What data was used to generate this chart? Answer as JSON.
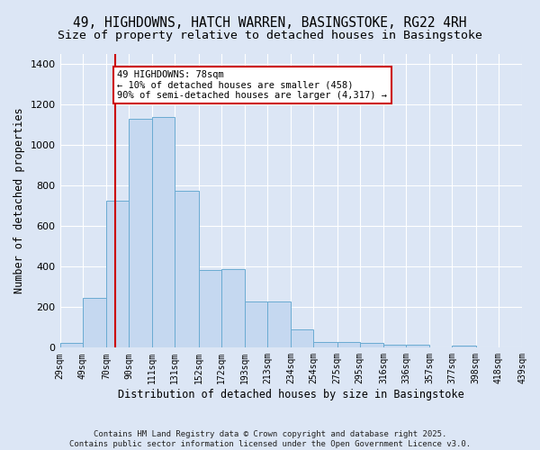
{
  "title_line1": "49, HIGHDOWNS, HATCH WARREN, BASINGSTOKE, RG22 4RH",
  "title_line2": "Size of property relative to detached houses in Basingstoke",
  "xlabel": "Distribution of detached houses by size in Basingstoke",
  "ylabel": "Number of detached properties",
  "bin_edges": [
    29,
    49,
    70,
    90,
    111,
    131,
    152,
    172,
    193,
    213,
    234,
    254,
    275,
    295,
    316,
    336,
    357,
    377,
    398,
    418,
    439
  ],
  "bar_heights": [
    25,
    245,
    725,
    1130,
    1140,
    775,
    385,
    390,
    230,
    230,
    90,
    30,
    30,
    25,
    15,
    15,
    0,
    10,
    0,
    0
  ],
  "bar_color": "#c5d8f0",
  "bar_edge_color": "#6aabd2",
  "property_line_x": 78,
  "property_line_color": "#cc0000",
  "annotation_text": "49 HIGHDOWNS: 78sqm\n← 10% of detached houses are smaller (458)\n90% of semi-detached houses are larger (4,317) →",
  "annotation_box_color": "#ffffff",
  "annotation_box_edge_color": "#cc0000",
  "background_color": "#dce6f5",
  "plot_bg_color": "#dce6f5",
  "grid_color": "#ffffff",
  "ylim": [
    0,
    1450
  ],
  "yticks": [
    0,
    200,
    400,
    600,
    800,
    1000,
    1200,
    1400
  ],
  "copyright_text": "Contains HM Land Registry data © Crown copyright and database right 2025.\nContains public sector information licensed under the Open Government Licence v3.0.",
  "title_fontsize": 10.5,
  "subtitle_fontsize": 9.5,
  "tick_label_fontsize": 7,
  "ylabel_fontsize": 8.5,
  "xlabel_fontsize": 8.5,
  "annotation_fontsize": 7.5,
  "copyright_fontsize": 6.5
}
